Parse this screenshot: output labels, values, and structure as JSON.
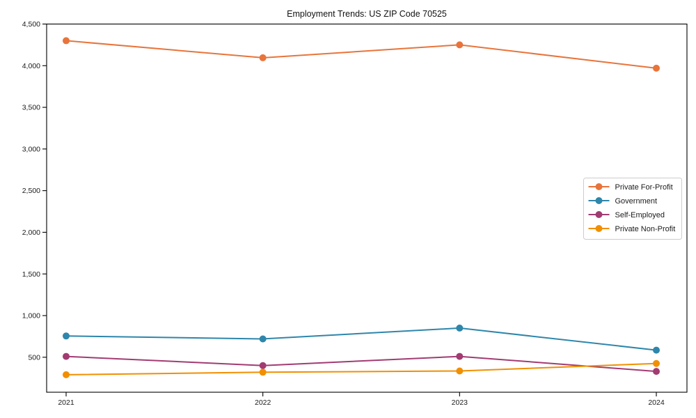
{
  "chart_data": {
    "type": "line",
    "title": "Employment Trends: US ZIP Code 70525",
    "categories": [
      "2021",
      "2022",
      "2023",
      "2024"
    ],
    "series": [
      {
        "name": "Private For-Profit",
        "color": "#E8743B",
        "values": [
          4300,
          4095,
          4250,
          3970
        ]
      },
      {
        "name": "Government",
        "color": "#2E86AB",
        "values": [
          755,
          720,
          850,
          585
        ]
      },
      {
        "name": "Self-Employed",
        "color": "#A23B72",
        "values": [
          510,
          400,
          510,
          330
        ]
      },
      {
        "name": "Private Non-Profit",
        "color": "#F18F01",
        "values": [
          290,
          320,
          335,
          425
        ]
      }
    ],
    "xlabel": "",
    "ylabel": "",
    "ylim": [
      80,
      4500
    ],
    "yticks": [
      500,
      1000,
      1500,
      2000,
      2500,
      3000,
      3500,
      4000,
      4500
    ],
    "ytick_labels": [
      "500",
      "1,000",
      "1,500",
      "2,000",
      "2,500",
      "3,000",
      "3,500",
      "4,000",
      "4,500"
    ],
    "grid": false,
    "legend_position": "center-right",
    "axis_color": "#000000",
    "text_color": "#1a1a1a",
    "background_color": "#ffffff"
  }
}
